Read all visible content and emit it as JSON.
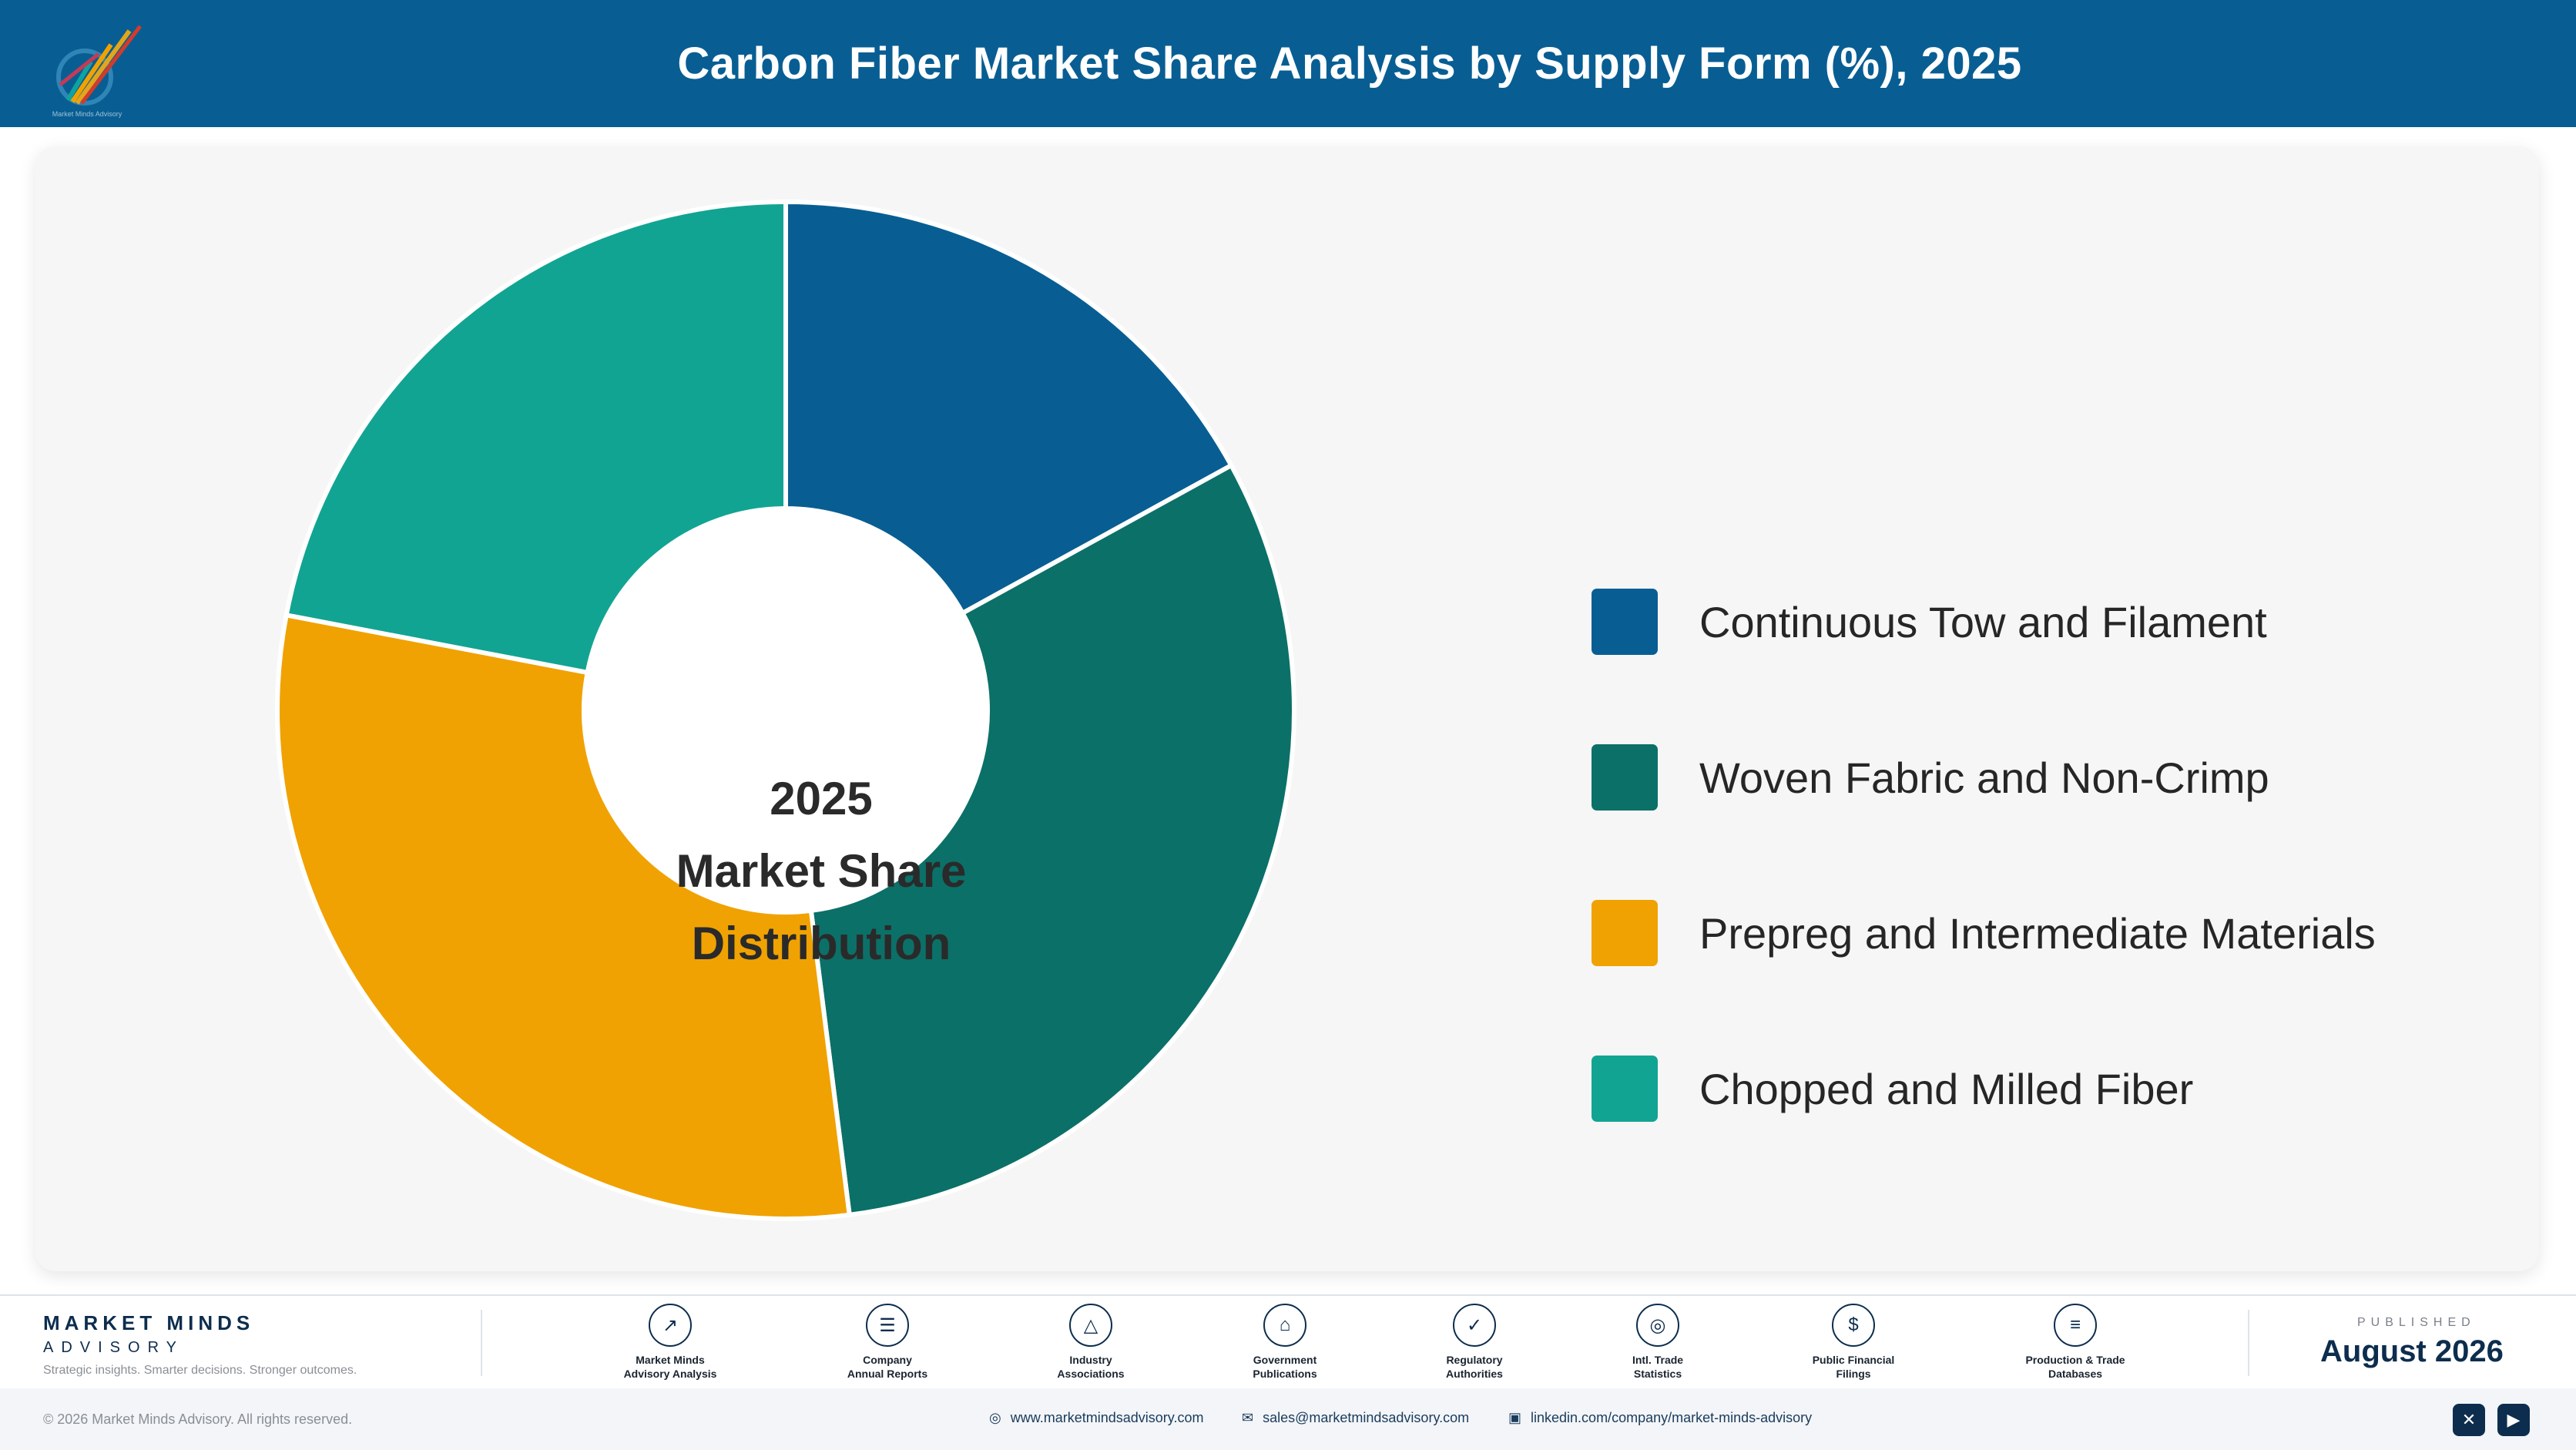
{
  "header": {
    "title": "Carbon Fiber Market Share Analysis by Supply Form (%), 2025",
    "logo_caption": "Market Minds Advisory"
  },
  "chart_data": {
    "type": "pie",
    "donut": true,
    "center_text": [
      "2025",
      "Market Share",
      "Distribution"
    ],
    "categories": [
      "Continuous Tow and Filament",
      "Woven Fabric and Non-Crimp",
      "Prepreg and Intermediate Materials",
      "Chopped and Milled Fiber"
    ],
    "values": [
      17,
      31,
      30,
      22
    ],
    "colors": [
      "#085e93",
      "#0b7068",
      "#f0a202",
      "#12a492"
    ],
    "legend_position": "right"
  },
  "footer": {
    "brand_name": "MARKET MINDS",
    "brand_sub": "ADVISORY",
    "tagline": "Strategic insights. Smarter decisions. Stronger outcomes.",
    "sources": [
      {
        "label": "Market Minds\nAdvisory Analysis",
        "icon": "trend-icon"
      },
      {
        "label": "Company\nAnnual Reports",
        "icon": "document-icon"
      },
      {
        "label": "Industry\nAssociations",
        "icon": "network-icon"
      },
      {
        "label": "Government\nPublications",
        "icon": "government-icon"
      },
      {
        "label": "Regulatory\nAuthorities",
        "icon": "shield-icon"
      },
      {
        "label": "Intl. Trade\nStatistics",
        "icon": "globe-icon"
      },
      {
        "label": "Public Financial\nFilings",
        "icon": "dollar-icon"
      },
      {
        "label": "Production & Trade\nDatabases",
        "icon": "database-icon"
      }
    ],
    "published_label": "PUBLISHED",
    "published_date": "August 2026"
  },
  "bottom_bar": {
    "copyright": "© 2026 Market Minds Advisory. All rights reserved.",
    "website": "www.marketmindsadvisory.com",
    "email": "sales@marketmindsadvisory.com",
    "linkedin": "linkedin.com/company/market-minds-advisory"
  }
}
